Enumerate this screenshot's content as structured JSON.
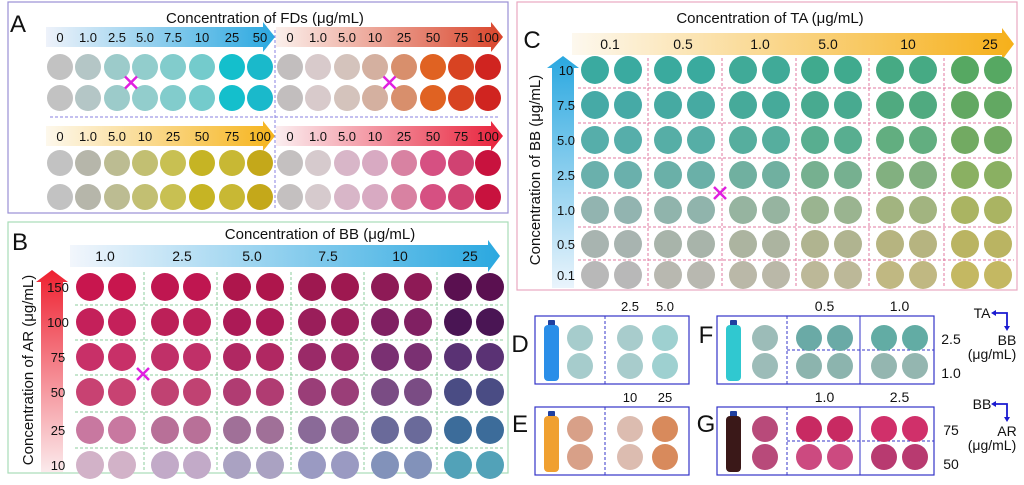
{
  "panelA": {
    "letter": "A",
    "title": "Concentration of FDs (μg/mL)",
    "groups": [
      {
        "labels": [
          "0",
          "1.0",
          "2.5",
          "5.0",
          "7.5",
          "10",
          "25",
          "50"
        ],
        "arrow": [
          "#eef2fa",
          "#2aa8e0"
        ],
        "colors": [
          "#c2c2c2",
          "#b4c6c6",
          "#9ccbca",
          "#92cdcc",
          "#82cccc",
          "#74cbcc",
          "#14bfcc",
          "#1ab9cb"
        ],
        "marker_after": 2
      },
      {
        "labels": [
          "0",
          "1.0",
          "5.0",
          "10",
          "25",
          "50",
          "75",
          "100"
        ],
        "arrow": [
          "#fbf0ec",
          "#d9442a"
        ],
        "colors": [
          "#c2bebe",
          "#d8cacb",
          "#d4c3bc",
          "#d4b0a0",
          "#d88f6c",
          "#e06222",
          "#d84322",
          "#d02420"
        ],
        "marker_after": 3
      },
      {
        "labels": [
          "0",
          "1.0",
          "5.0",
          "10",
          "25",
          "50",
          "75",
          "100"
        ],
        "arrow": [
          "#fdf8ec",
          "#f6b41c"
        ],
        "colors": [
          "#c2c2c2",
          "#b6b6aa",
          "#bcbc92",
          "#c2bf72",
          "#c8c052",
          "#c6b424",
          "#c8b834",
          "#c4a81a"
        ]
      },
      {
        "labels": [
          "0",
          "1.0",
          "5.0",
          "10",
          "25",
          "50",
          "75",
          "100"
        ],
        "arrow": [
          "#fbeef0",
          "#e8203a"
        ],
        "colors": [
          "#c4c0c0",
          "#d6cacd",
          "#d8b6c8",
          "#d8aac2",
          "#d882a2",
          "#d65082",
          "#d04272",
          "#c8123e"
        ]
      }
    ]
  },
  "panelB": {
    "letter": "B",
    "title": "Concentration of BB (μg/mL)",
    "y_title": "Concentration of AR (μg/mL)",
    "x_labels": [
      "1.0",
      "2.5",
      "5.0",
      "7.5",
      "10",
      "25"
    ],
    "y_labels": [
      "150",
      "100",
      "75",
      "50",
      "25",
      "10"
    ],
    "colors": [
      [
        "#c8164e",
        "#bf1650",
        "#ae164c",
        "#9e1850",
        "#8e1a56",
        "#5a1050"
      ],
      [
        "#c4205a",
        "#bc2058",
        "#ac1a56",
        "#9a1e5a",
        "#802062",
        "#4a1554"
      ],
      [
        "#c83068",
        "#c03068",
        "#b02862",
        "#9a2a68",
        "#7a3072",
        "#5a3274"
      ],
      [
        "#c84272",
        "#c04272",
        "#b03c72",
        "#9a3e78",
        "#7a4c84",
        "#4a4c84"
      ],
      [
        "#c878a0",
        "#b87098",
        "#a07098",
        "#8a6a98",
        "#6a6a9a",
        "#3c6c9a"
      ],
      [
        "#d2b2c8",
        "#c2aac8",
        "#aaa2c2",
        "#9a9ac2",
        "#8292ba",
        "#52a2b8"
      ]
    ],
    "marker_after_col": 0
  },
  "panelC": {
    "letter": "C",
    "title": "Concentration of TA (μg/mL)",
    "y_title": "Concentration of BB (μg/mL)",
    "x_labels": [
      "0.1",
      "0.5",
      "1.0",
      "5.0",
      "10",
      "25"
    ],
    "y_labels": [
      "10",
      "7.5",
      "5.0",
      "2.5",
      "1.0",
      "0.5",
      "0.1"
    ],
    "colors": [
      [
        "#3aaaa0",
        "#3aaa9e",
        "#40aa98",
        "#40aa8e",
        "#46aa84",
        "#56a862"
      ],
      [
        "#46aaa6",
        "#46aaa2",
        "#46aa9a",
        "#48aa90",
        "#50aa80",
        "#62a862"
      ],
      [
        "#56aeaa",
        "#56aea6",
        "#56ae9e",
        "#58ae90",
        "#62ae80",
        "#72aa62"
      ],
      [
        "#6ab0ac",
        "#6ab0a8",
        "#70b0a0",
        "#76b090",
        "#82b080",
        "#8ab062"
      ],
      [
        "#92b4b0",
        "#90b4ac",
        "#96b4a0",
        "#9ab490",
        "#a2b480",
        "#aab462"
      ],
      [
        "#a8b4b0",
        "#a8b4aa",
        "#acb4a0",
        "#b0b490",
        "#b6b480",
        "#bab462"
      ],
      [
        "#b8b8b8",
        "#b8b8b0",
        "#bab8a8",
        "#bcb898",
        "#c0b882",
        "#c4b862"
      ]
    ]
  },
  "panelD": {
    "letter": "D",
    "labels": [
      "2.5",
      "5.0"
    ],
    "bottle": "#2a8ee8",
    "sample": "#a6cccc",
    "colors": [
      "#a8cccc",
      "#9ed0d0"
    ]
  },
  "panelE": {
    "letter": "E",
    "labels": [
      "10",
      "25"
    ],
    "bottle": "#f0a030",
    "sample": "#d8a088",
    "colors": [
      "#dcbcb0",
      "#d88a5c"
    ]
  },
  "panelF": {
    "letter": "F",
    "labels": [
      "0.5",
      "1.0"
    ],
    "row_labels": [
      "2.5",
      "1.0"
    ],
    "bottle": "#30c8d0",
    "sample": "#9cbcb8",
    "colors": [
      [
        "#6aaaa6",
        "#62aca4"
      ],
      [
        "#8cb4ae",
        "#94b6b0"
      ]
    ],
    "axis": {
      "x": "TA",
      "y": "BB",
      "unit": "(μg/mL)"
    }
  },
  "panelG": {
    "letter": "G",
    "labels": [
      "1.0",
      "2.5"
    ],
    "row_labels": [
      "75",
      "50"
    ],
    "bottle": "#3a1818",
    "sample": "#b84a7a",
    "colors": [
      [
        "#c82a62",
        "#d0306a"
      ],
      [
        "#cc4a80",
        "#b83a70"
      ]
    ],
    "axis": {
      "x": "BB",
      "y": "AR",
      "unit": "(μg/mL)"
    }
  },
  "marker_color": "#e020e0",
  "border_colors": {
    "A": "#9a90d4",
    "B": "#a8dcb8",
    "C": "#e8a8c0",
    "DG": "#3434c8"
  }
}
